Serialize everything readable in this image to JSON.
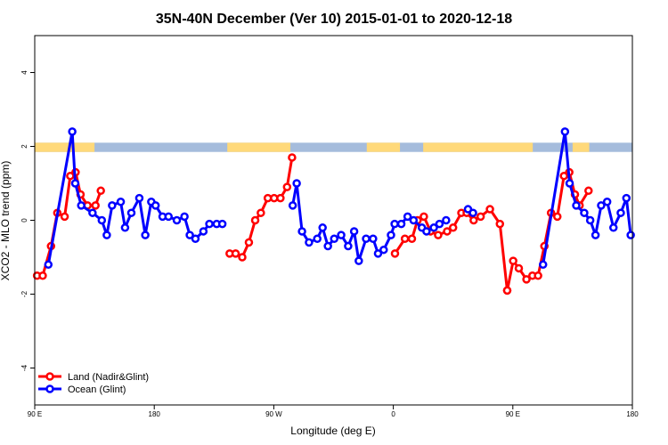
{
  "chart_data": {
    "type": "line",
    "title": "35N-40N December (Ver 10)   2015-01-01 to 2020-12-18",
    "xlabel": "Longitude (deg E)",
    "ylabel": "XCO2 - MLO trend (ppm)",
    "xlim": [
      90,
      270
    ],
    "ylim": [
      -5,
      5
    ],
    "x_ticks": [
      {
        "value": 90,
        "label": "90 E"
      },
      {
        "value": 126,
        "label": "180"
      },
      {
        "value": 162,
        "label": "90 W"
      },
      {
        "value": 198,
        "label": "0"
      },
      {
        "value": 234,
        "label": "90 E"
      },
      {
        "value": 270,
        "label": "180"
      }
    ],
    "y_ticks": [
      -4,
      -2,
      0,
      2,
      4
    ],
    "legend": {
      "position": "bottom-left",
      "entries": [
        {
          "label": "Land (Nadir&Glint)",
          "color": "#ff0000"
        },
        {
          "label": "Ocean (Glint)",
          "color": "#0000ff"
        }
      ]
    },
    "land_sea_band": {
      "y_range": [
        1.85,
        2.1
      ],
      "ocean_color": "#a5bcdc",
      "land_color": "#ffd97a",
      "land_ranges": [
        [
          90,
          108
        ],
        [
          148,
          167
        ],
        [
          190,
          200
        ],
        [
          207,
          240
        ],
        [
          252,
          257
        ]
      ]
    },
    "series": [
      {
        "name": "Land (Nadir&Glint)",
        "color": "#ff0000",
        "segments": [
          {
            "x": [
              90.7,
              92.4,
              94.9,
              96.8,
              99,
              100.7,
              102.3,
              103.8,
              105.9,
              108.3,
              109.9
            ],
            "y": [
              -1.5,
              -1.5,
              -0.7,
              0.2,
              0.1,
              1.2,
              1.3,
              0.7,
              0.4,
              0.4,
              0.8
            ]
          },
          {
            "x": [
              148.7,
              150.5,
              152.5,
              154.5,
              156.4,
              158.1,
              160.2,
              162.1,
              164,
              166,
              167.5
            ],
            "y": [
              -0.9,
              -0.9,
              -1.0,
              -0.6,
              0.0,
              0.2,
              0.6,
              0.6,
              0.6,
              0.9,
              1.7
            ]
          },
          {
            "x": [
              198.5,
              201.5,
              203.6,
              205.3,
              207.2,
              209.2,
              211.5,
              214.2,
              216,
              218.5,
              220.1,
              222.2,
              224.3,
              227.1,
              230.1,
              232.3
            ],
            "y": [
              -0.9,
              -0.5,
              -0.5,
              0.0,
              0.1,
              -0.3,
              -0.4,
              -0.3,
              -0.2,
              0.2,
              0.2,
              0.0,
              0.1,
              0.3,
              -0.1,
              -1.9
            ]
          },
          {
            "x": [
              232.3,
              234.1,
              235.8,
              238.1,
              239.9,
              241.6,
              243.5,
              245.5,
              247.4,
              249.4,
              251,
              252.7,
              254.1,
              256.8
            ],
            "y": [
              -1.9,
              -1.1,
              -1.3,
              -1.6,
              -1.5,
              -1.5,
              -0.7,
              0.2,
              0.1,
              1.2,
              1.3,
              0.7,
              0.4,
              0.8
            ]
          }
        ]
      },
      {
        "name": "Ocean (Glint)",
        "color": "#0000ff",
        "segments": [
          {
            "x": [
              94.1,
              101.3,
              102.2,
              104.0,
              107.4,
              110.2,
              111.7,
              113.3,
              115.9,
              117.2,
              119.1,
              121.5,
              123.3,
              125.1,
              126.4,
              128.5,
              130.3,
              132.8,
              135.1,
              136.7,
              138.4,
              140.8,
              142.6,
              144.8,
              146.5
            ],
            "y": [
              -1.2,
              2.4,
              1.0,
              0.4,
              0.2,
              0.0,
              -0.4,
              0.4,
              0.5,
              -0.2,
              0.2,
              0.6,
              -0.4,
              0.5,
              0.4,
              0.1,
              0.1,
              0.0,
              0.1,
              -0.4,
              -0.5,
              -0.3,
              -0.1,
              -0.1,
              -0.1
            ]
          },
          {
            "x": [
              167.7,
              168.9,
              170.5,
              172.6,
              175.1,
              176.7,
              178.3,
              180.2,
              182.3,
              184.4,
              186.2,
              187.6,
              189.8,
              191.9,
              193.4,
              195.1,
              197.3,
              198.4,
              200.4,
              202.3,
              204.1,
              206.6,
              208.0,
              210.2,
              211.9,
              213.9
            ],
            "y": [
              0.4,
              1.0,
              -0.3,
              -0.6,
              -0.5,
              -0.2,
              -0.7,
              -0.5,
              -0.4,
              -0.7,
              -0.3,
              -1.1,
              -0.5,
              -0.5,
              -0.9,
              -0.8,
              -0.4,
              -0.1,
              -0.1,
              0.1,
              0.0,
              -0.2,
              -0.3,
              -0.2,
              -0.1,
              0.0
            ]
          },
          {
            "x": [
              220.5,
              222.0
            ],
            "y": [
              0.3,
              0.2
            ]
          },
          {
            "x": [
              243.1,
              249.7,
              251.1,
              253.1,
              255.5,
              257.3,
              258.9,
              260.6,
              262.4,
              264.3,
              266.5,
              268.2,
              269.5
            ],
            "y": [
              -1.2,
              2.4,
              1.0,
              0.4,
              0.2,
              0.0,
              -0.4,
              0.4,
              0.5,
              -0.2,
              0.2,
              0.6,
              -0.4
            ]
          }
        ]
      }
    ]
  }
}
